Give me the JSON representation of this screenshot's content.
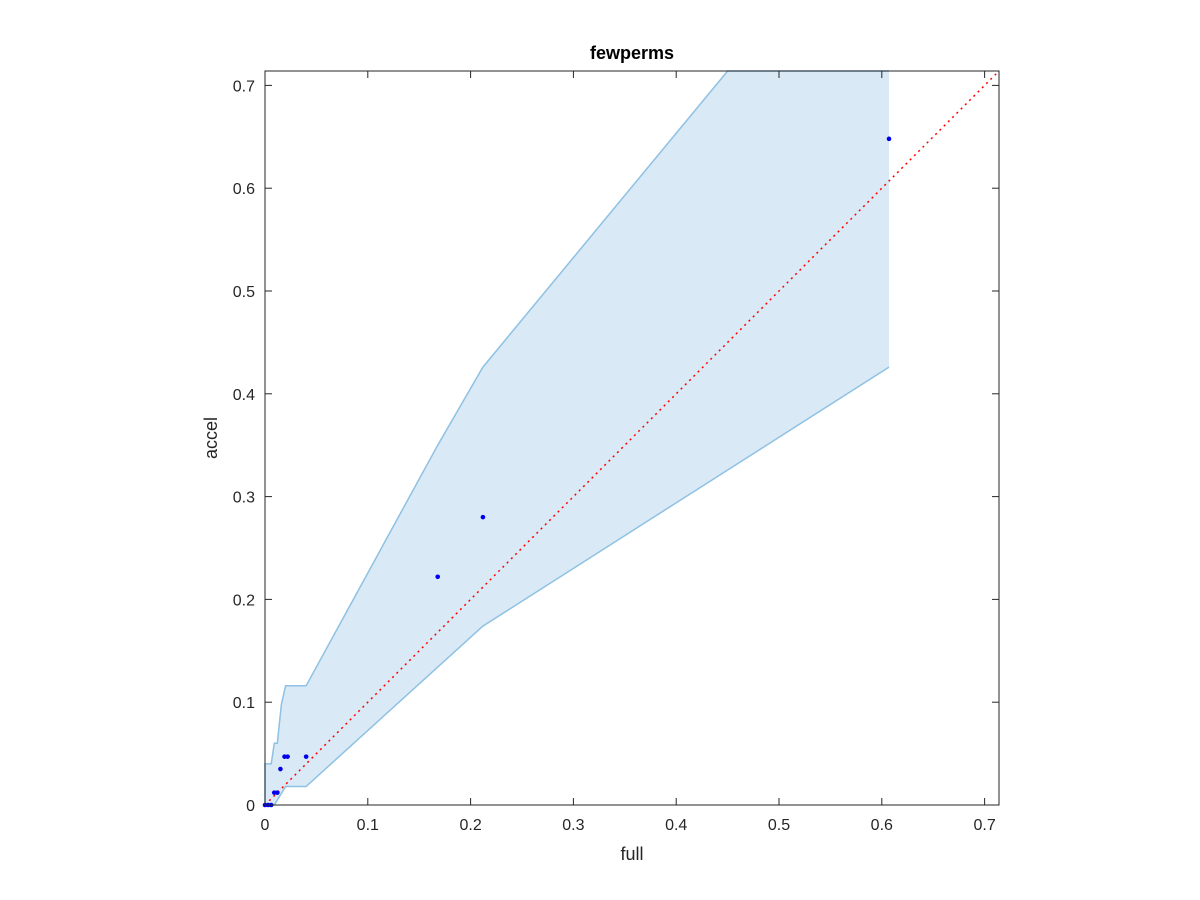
{
  "chart_data": {
    "type": "scatter",
    "title": "fewperms",
    "xlabel": "full",
    "ylabel": "accel",
    "xlim": [
      0,
      0.714
    ],
    "ylim": [
      0,
      0.714
    ],
    "xticks": [
      0,
      0.1,
      0.2,
      0.3,
      0.4,
      0.5,
      0.6,
      0.7
    ],
    "xtick_labels": [
      "0",
      "0.1",
      "0.2",
      "0.3",
      "0.4",
      "0.5",
      "0.6",
      "0.7"
    ],
    "yticks": [
      0,
      0.1,
      0.2,
      0.3,
      0.4,
      0.5,
      0.6,
      0.7
    ],
    "ytick_labels": [
      "0",
      "0.1",
      "0.2",
      "0.3",
      "0.4",
      "0.5",
      "0.6",
      "0.7"
    ],
    "grid": false,
    "points": {
      "x": [
        0.0,
        0.003,
        0.006,
        0.009,
        0.012,
        0.015,
        0.019,
        0.022,
        0.04,
        0.168,
        0.212,
        0.607
      ],
      "y": [
        0.0,
        0.0,
        0.0,
        0.012,
        0.012,
        0.035,
        0.047,
        0.047,
        0.047,
        0.222,
        0.28,
        0.648
      ],
      "color": "#0000ee"
    },
    "band": {
      "upper": {
        "x": [
          0.0,
          0.0,
          0.006,
          0.009,
          0.012,
          0.016,
          0.02,
          0.04,
          0.168,
          0.212,
          0.45,
          0.607
        ],
        "y": [
          0.0,
          0.04,
          0.04,
          0.06,
          0.06,
          0.098,
          0.116,
          0.116,
          0.35,
          0.426,
          0.714,
          0.714
        ]
      },
      "lower": {
        "x": [
          0.0,
          0.0,
          0.006,
          0.009,
          0.02,
          0.04,
          0.212,
          0.607
        ],
        "y": [
          0.0,
          0.0,
          0.0,
          0.0,
          0.018,
          0.018,
          0.174,
          0.426
        ]
      },
      "fill_color": "#d9e9f5",
      "edge_color": "#8ec1e3"
    },
    "reference_line": {
      "x": [
        0,
        0.714
      ],
      "y": [
        0,
        0.714
      ],
      "color": "#ff0000",
      "style": "dotted"
    }
  }
}
